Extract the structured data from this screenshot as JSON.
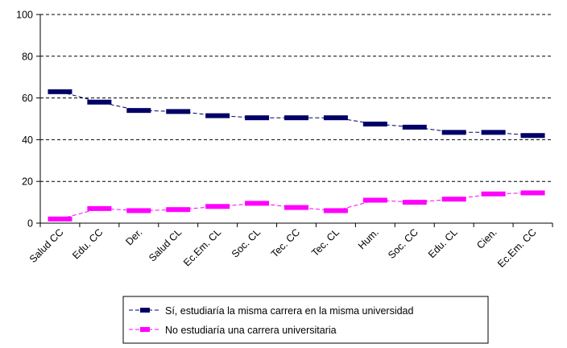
{
  "chart_data": {
    "type": "line",
    "categories": [
      "Salud CC",
      "Edu. CC",
      "Der.",
      "Salud CL",
      "Ec.Em. CL",
      "Soc. CL",
      "Tec. CC",
      "Tec. CL",
      "Hum.",
      "Soc. CC",
      "Edu. CL",
      "Cien.",
      "Ec.Em. CC"
    ],
    "series": [
      {
        "name": "Sí, estudiaría la misma carrera en la misma universidad",
        "color": "#000066",
        "values": [
          63,
          58,
          54,
          53.5,
          51.5,
          50.5,
          50.5,
          50.5,
          47.5,
          46,
          43.5,
          43.5,
          42
        ]
      },
      {
        "name": "No estudiaría una carrera universitaria",
        "color": "#FF00FF",
        "values": [
          2,
          7,
          6,
          6.5,
          8,
          9.5,
          7.5,
          6,
          11,
          10,
          11.5,
          14,
          14.5
        ]
      }
    ],
    "yticks": [
      "0",
      "20",
      "40",
      "60",
      "80",
      "100"
    ],
    "ylim": [
      0,
      100
    ],
    "grid": "horizontal-dashed",
    "legend_position": "bottom"
  }
}
